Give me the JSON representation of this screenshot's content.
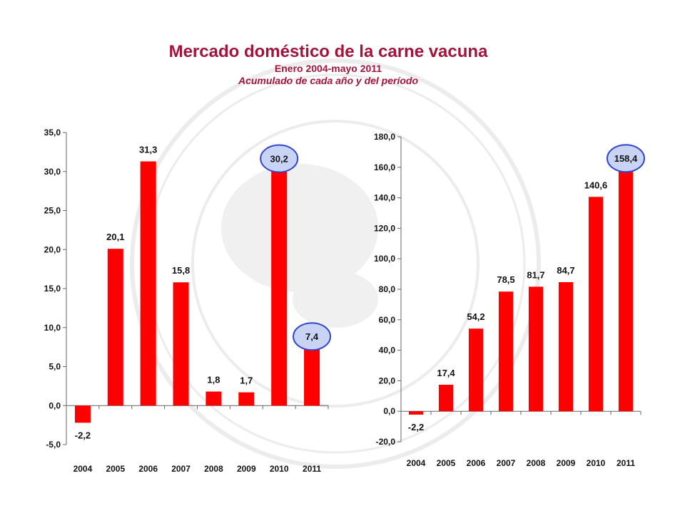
{
  "header": {
    "title": "Mercado doméstico de la carne vacuna",
    "subtitle": "Enero 2004-mayo 2011",
    "subtitle2": "Acumulado de cada año y del período"
  },
  "colors": {
    "bar": "#ff0000",
    "title": "#a3143c",
    "highlight_fill": "#c9d4f4",
    "highlight_stroke": "#3344cc"
  },
  "chart_data": [
    {
      "type": "bar",
      "categories": [
        "2004",
        "2005",
        "2006",
        "2007",
        "2008",
        "2009",
        "2010",
        "2011"
      ],
      "values": [
        -2.2,
        20.1,
        31.3,
        15.8,
        1.8,
        1.7,
        30.2,
        7.4
      ],
      "labels": [
        "-2,2",
        "20,1",
        "31,3",
        "15,8",
        "1,8",
        "1,7",
        "30,2",
        "7,4"
      ],
      "highlighted": [
        "2010",
        "2011"
      ],
      "yticks": [
        "-5,0",
        "0,0",
        "5,0",
        "10,0",
        "15,0",
        "20,0",
        "25,0",
        "30,0",
        "35,0"
      ],
      "ylim": [
        -5,
        35
      ],
      "grid": false
    },
    {
      "type": "bar",
      "categories": [
        "2004",
        "2005",
        "2006",
        "2007",
        "2008",
        "2009",
        "2010",
        "2011"
      ],
      "values": [
        -2.2,
        17.4,
        54.2,
        78.5,
        81.7,
        84.7,
        140.6,
        158.4
      ],
      "labels": [
        "-2,2",
        "17,4",
        "54,2",
        "78,5",
        "81,7",
        "84,7",
        "140,6",
        "158,4"
      ],
      "highlighted": [
        "2011"
      ],
      "yticks": [
        "-20,0",
        "0,0",
        "20,0",
        "40,0",
        "60,0",
        "80,0",
        "100,0",
        "120,0",
        "140,0",
        "160,0",
        "180,0"
      ],
      "ylim": [
        -20,
        180
      ],
      "grid": false
    }
  ]
}
